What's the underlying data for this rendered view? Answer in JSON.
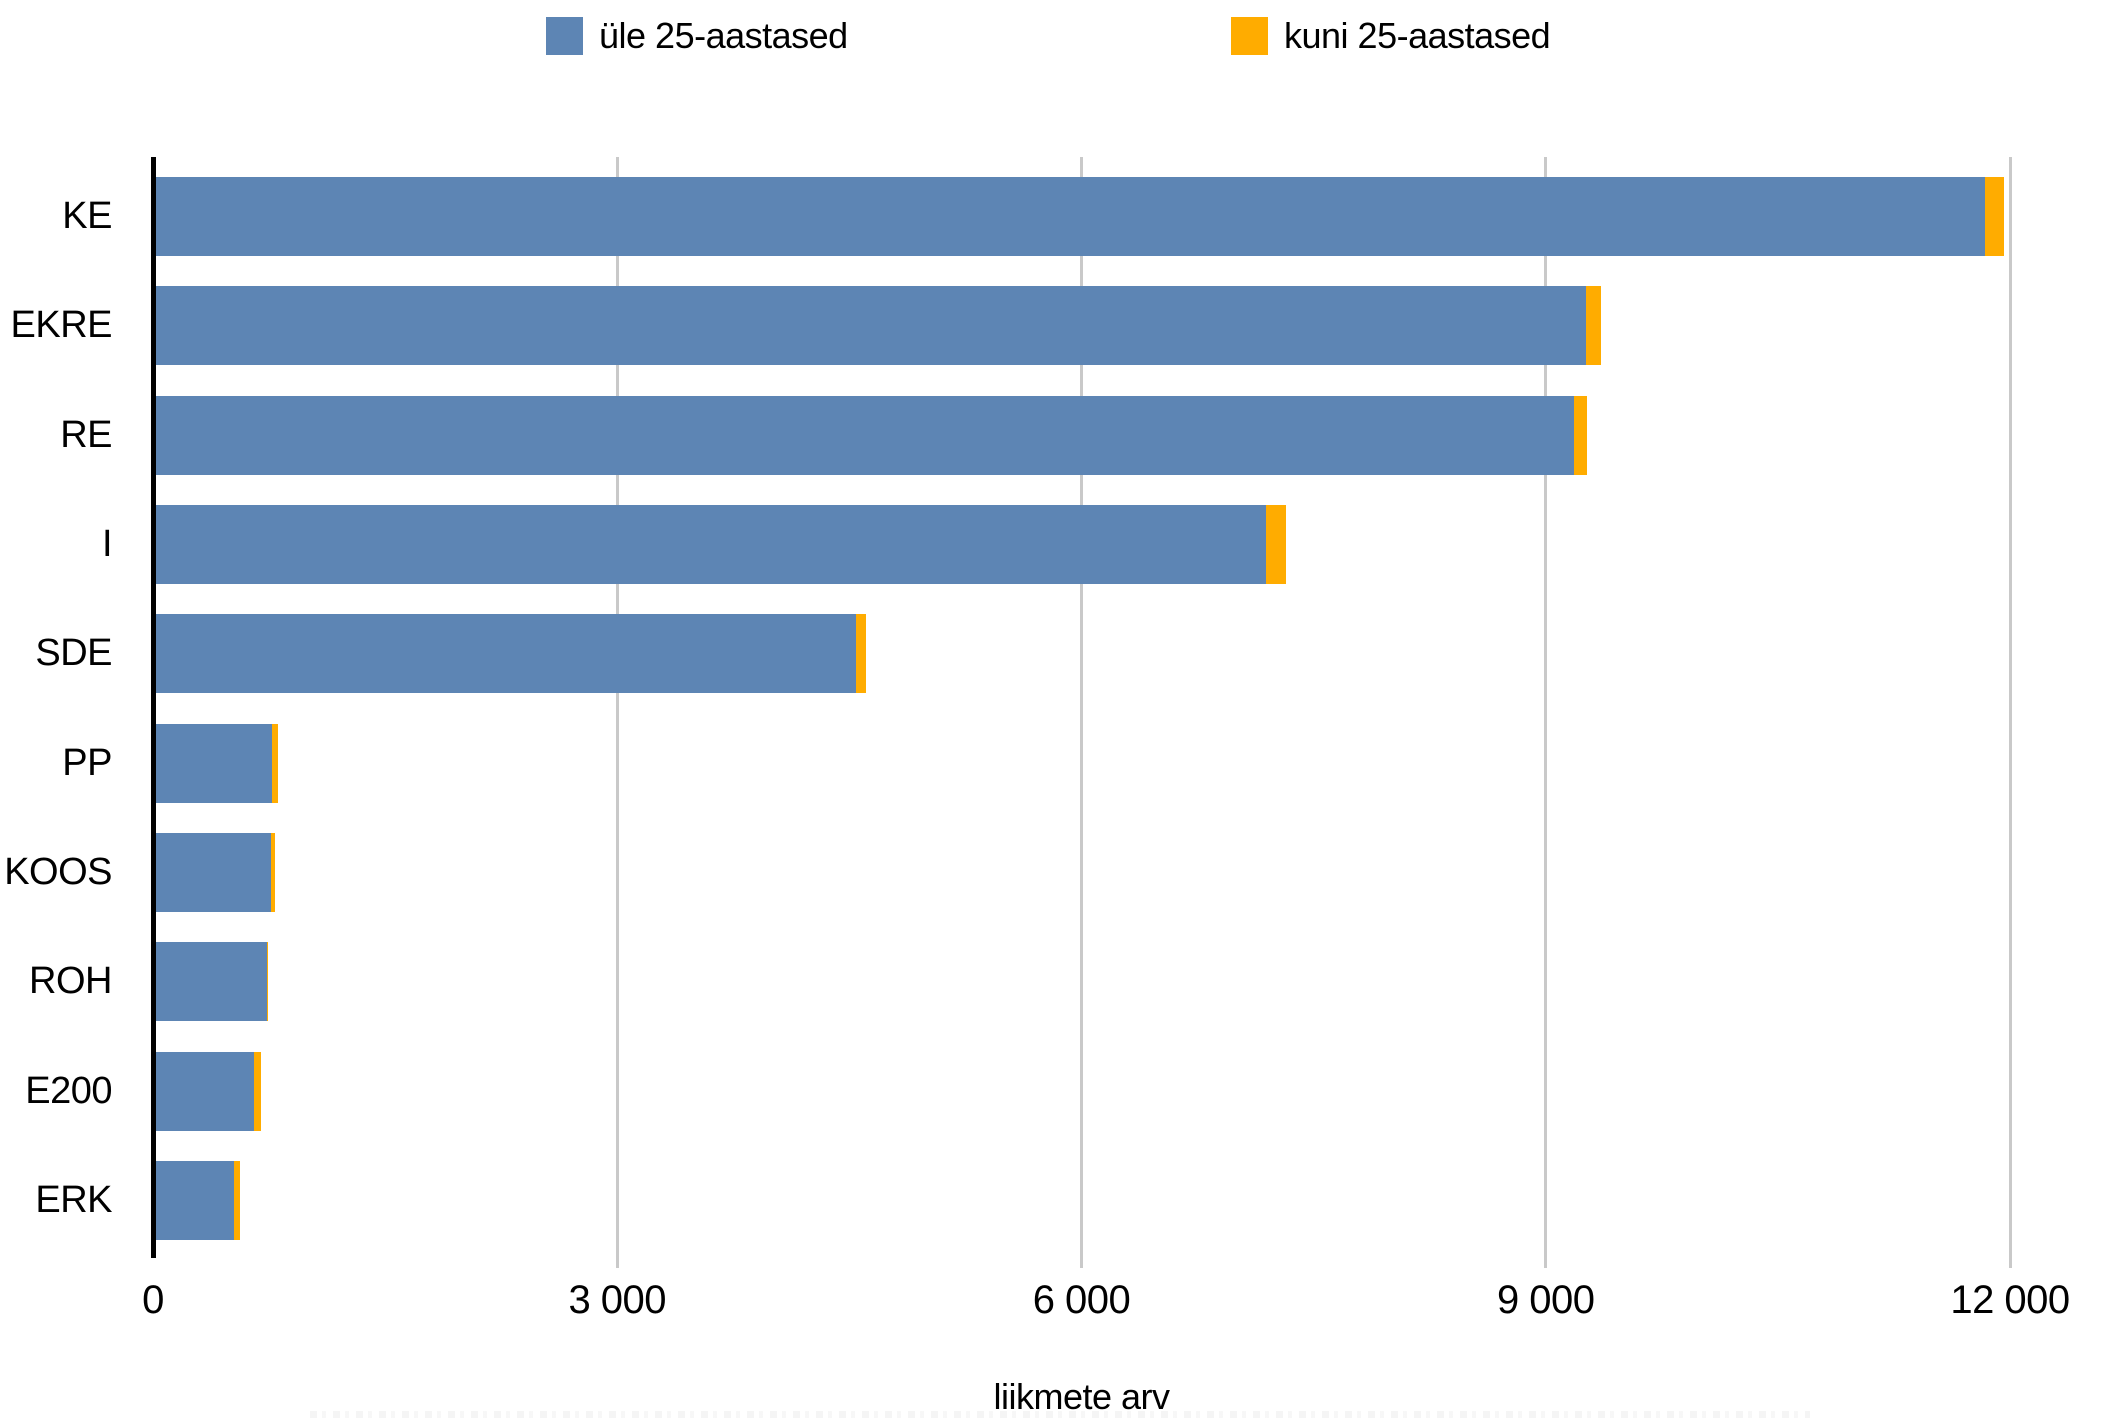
{
  "legend": {
    "items": [
      {
        "label": "üle 25-aastased",
        "color": "#5D85B4",
        "swatch_icon": "blue-square"
      },
      {
        "label": "kuni 25-aastased",
        "color": "#FFAC00",
        "swatch_icon": "orange-square"
      }
    ]
  },
  "axis": {
    "xlabel": "liikmete arv",
    "x_tick_labels": [
      "0",
      "3 000",
      "6 000",
      "9 000",
      "12 000"
    ]
  },
  "chart_data": {
    "type": "bar",
    "orientation": "horizontal",
    "stacked": true,
    "title": "",
    "xlabel": "liikmete arv",
    "ylabel": "",
    "xlim": [
      0,
      12000
    ],
    "x_ticks": [
      0,
      3000,
      6000,
      9000,
      12000
    ],
    "grid": "vertical-gridlines",
    "legend_position": "top",
    "categories": [
      "KE",
      "EKRE",
      "RE",
      "I",
      "SDE",
      "PP",
      "KOOS",
      "ROH",
      "E200",
      "ERK"
    ],
    "series": [
      {
        "name": "üle 25-aastased",
        "color": "#5D85B4",
        "values": [
          11820,
          9240,
          9160,
          7170,
          4520,
          750,
          745,
          715,
          635,
          505
        ]
      },
      {
        "name": "kuni 25-aastased",
        "color": "#FFAC00",
        "values": [
          120,
          100,
          85,
          135,
          70,
          40,
          25,
          10,
          45,
          40
        ]
      }
    ]
  }
}
